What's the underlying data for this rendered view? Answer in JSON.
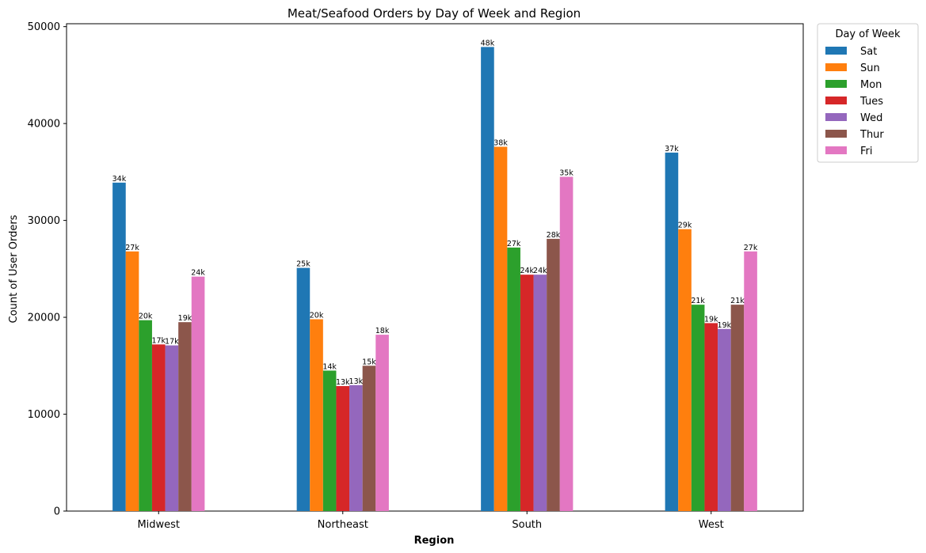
{
  "chart_data": {
    "type": "bar",
    "title": "Meat/Seafood Orders by Day of Week and Region",
    "xlabel": "Region",
    "ylabel": "Count of User Orders",
    "categories": [
      "Midwest",
      "Northeast",
      "South",
      "West"
    ],
    "ylim": [
      0,
      50300
    ],
    "yticks": [
      0,
      10000,
      20000,
      30000,
      40000,
      50000
    ],
    "grid": false,
    "legend": {
      "title": "Day of Week",
      "placement": "outside upper-right"
    },
    "series": [
      {
        "name": "Sat",
        "color": "#1f77b4",
        "values": [
          33900,
          25100,
          47900,
          37000
        ],
        "labels": [
          "34k",
          "25k",
          "48k",
          "37k"
        ]
      },
      {
        "name": "Sun",
        "color": "#ff7f0e",
        "values": [
          26800,
          19800,
          37600,
          29100
        ],
        "labels": [
          "27k",
          "20k",
          "38k",
          "29k"
        ]
      },
      {
        "name": "Mon",
        "color": "#2ca02c",
        "values": [
          19700,
          14500,
          27200,
          21300
        ],
        "labels": [
          "20k",
          "14k",
          "27k",
          "21k"
        ]
      },
      {
        "name": "Tues",
        "color": "#d62728",
        "values": [
          17200,
          12900,
          24400,
          19400
        ],
        "labels": [
          "17k",
          "13k",
          "24k",
          "19k"
        ]
      },
      {
        "name": "Wed",
        "color": "#9467bd",
        "values": [
          17100,
          13000,
          24400,
          18800
        ],
        "labels": [
          "17k",
          "13k",
          "24k",
          "19k"
        ]
      },
      {
        "name": "Thur",
        "color": "#8c564b",
        "values": [
          19500,
          15000,
          28100,
          21300
        ],
        "labels": [
          "19k",
          "15k",
          "28k",
          "21k"
        ]
      },
      {
        "name": "Fri",
        "color": "#e377c2",
        "values": [
          24200,
          18200,
          34500,
          26800
        ],
        "labels": [
          "24k",
          "18k",
          "35k",
          "27k"
        ]
      }
    ]
  }
}
